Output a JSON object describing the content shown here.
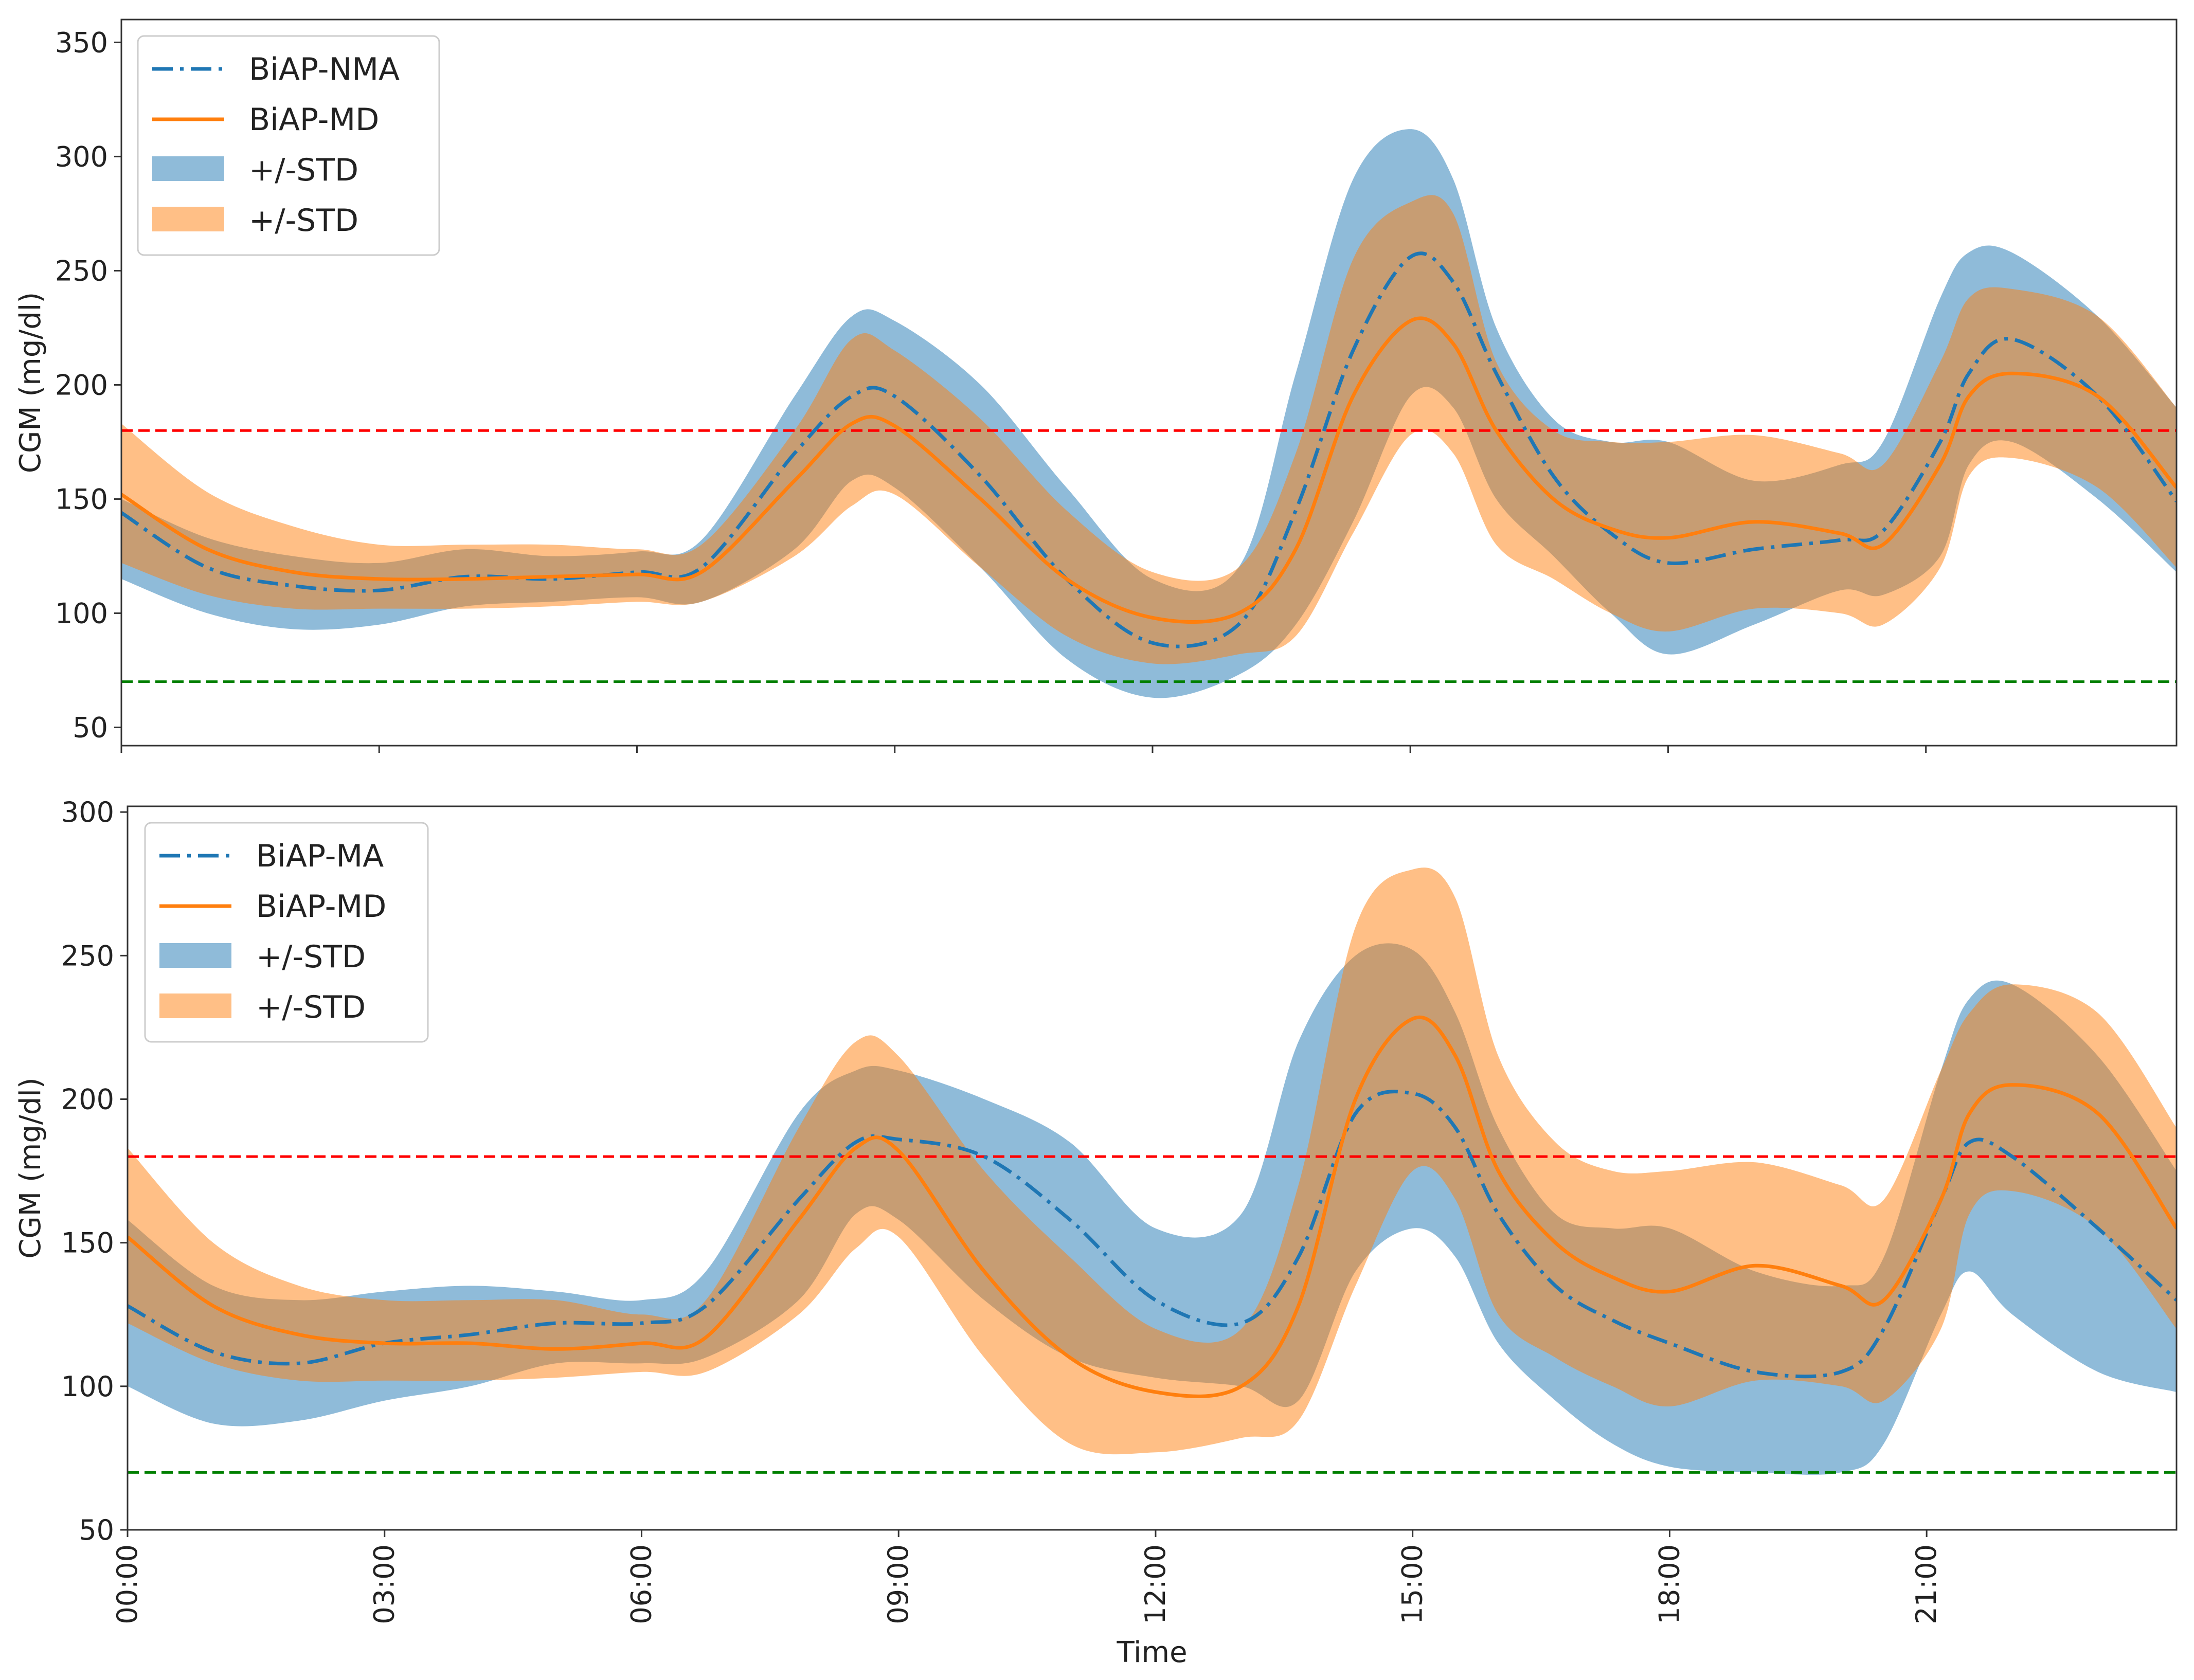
{
  "chart_data": [
    {
      "type": "line",
      "title": "",
      "xlabel": "",
      "ylabel": "CGM (mg/dl)",
      "xlim": [
        0,
        1435
      ],
      "ylim": [
        42,
        360
      ],
      "yticks": [
        50,
        100,
        150,
        200,
        250,
        300,
        350
      ],
      "xtick_values": [
        0,
        180,
        360,
        540,
        720,
        900,
        1080,
        1260
      ],
      "xtick_labels": [
        "00:00",
        "03:00",
        "06:00",
        "09:00",
        "12:00",
        "15:00",
        "18:00",
        "21:00"
      ],
      "show_x_tick_labels": false,
      "thresholds": [
        {
          "value": 180,
          "color": "#ff0000"
        },
        {
          "value": 70,
          "color": "#008000"
        }
      ],
      "legend_location": "upper-left",
      "legend": [
        {
          "label": "BiAP-NMA",
          "kind": "dashdot",
          "color": "#1f77b4"
        },
        {
          "label": "BiAP-MD",
          "kind": "line",
          "color": "#ff7f0e"
        },
        {
          "label": "+/-STD",
          "kind": "band",
          "color": "#1f77b4"
        },
        {
          "label": "+/-STD",
          "kind": "band",
          "color": "#ff7f0e"
        }
      ],
      "series": [
        {
          "name": "BiAP-NMA",
          "color": "#1f77b4",
          "style": "dashdot",
          "x": [
            0,
            60,
            120,
            180,
            240,
            300,
            360,
            405,
            470,
            510,
            540,
            600,
            660,
            720,
            780,
            820,
            860,
            900,
            930,
            960,
            1000,
            1040,
            1080,
            1140,
            1200,
            1230,
            1270,
            1290,
            1320,
            1380,
            1435
          ],
          "y": [
            144,
            120,
            112,
            110,
            116,
            115,
            118,
            120,
            170,
            195,
            195,
            160,
            115,
            87,
            95,
            145,
            215,
            256,
            245,
            205,
            160,
            135,
            122,
            128,
            132,
            136,
            175,
            205,
            220,
            195,
            149
          ],
          "upper": [
            150,
            133,
            125,
            122,
            128,
            125,
            127,
            132,
            195,
            230,
            228,
            200,
            155,
            115,
            120,
            205,
            290,
            312,
            290,
            225,
            185,
            175,
            175,
            158,
            165,
            175,
            238,
            258,
            258,
            230,
            190
          ],
          "lower": [
            115,
            100,
            93,
            95,
            103,
            105,
            107,
            105,
            128,
            158,
            155,
            120,
            80,
            63,
            73,
            95,
            140,
            195,
            190,
            150,
            125,
            100,
            82,
            95,
            110,
            108,
            125,
            165,
            175,
            150,
            118
          ]
        },
        {
          "name": "BiAP-MD",
          "color": "#ff7f0e",
          "style": "solid",
          "x": [
            0,
            60,
            120,
            180,
            240,
            300,
            360,
            405,
            470,
            510,
            540,
            600,
            660,
            720,
            780,
            820,
            860,
            900,
            930,
            960,
            1000,
            1040,
            1080,
            1140,
            1200,
            1230,
            1270,
            1290,
            1320,
            1380,
            1435
          ],
          "y": [
            152,
            128,
            118,
            115,
            115,
            116,
            117,
            118,
            158,
            183,
            182,
            150,
            115,
            98,
            100,
            128,
            195,
            228,
            218,
            180,
            150,
            137,
            133,
            140,
            135,
            130,
            165,
            195,
            205,
            195,
            155
          ],
          "upper": [
            183,
            153,
            138,
            130,
            130,
            130,
            128,
            130,
            180,
            220,
            215,
            185,
            145,
            118,
            120,
            170,
            255,
            280,
            275,
            210,
            180,
            175,
            175,
            178,
            170,
            165,
            210,
            238,
            242,
            230,
            190
          ],
          "lower": [
            122,
            108,
            102,
            102,
            102,
            103,
            105,
            105,
            125,
            147,
            152,
            120,
            90,
            78,
            82,
            90,
            135,
            178,
            170,
            130,
            115,
            100,
            92,
            102,
            100,
            95,
            120,
            160,
            168,
            155,
            120
          ]
        }
      ]
    },
    {
      "type": "line",
      "title": "",
      "xlabel": "Time",
      "ylabel": "CGM (mg/dl)",
      "xlim": [
        0,
        1435
      ],
      "ylim": [
        50,
        302
      ],
      "yticks": [
        50,
        100,
        150,
        200,
        250,
        300
      ],
      "xtick_values": [
        0,
        180,
        360,
        540,
        720,
        900,
        1080,
        1260
      ],
      "xtick_labels": [
        "00:00",
        "03:00",
        "06:00",
        "09:00",
        "12:00",
        "15:00",
        "18:00",
        "21:00"
      ],
      "show_x_tick_labels": true,
      "thresholds": [
        {
          "value": 180,
          "color": "#ff0000"
        },
        {
          "value": 70,
          "color": "#008000"
        }
      ],
      "legend_location": "upper-left",
      "legend": [
        {
          "label": "BiAP-MA",
          "kind": "dashdot",
          "color": "#1f77b4"
        },
        {
          "label": "BiAP-MD",
          "kind": "line",
          "color": "#ff7f0e"
        },
        {
          "label": "+/-STD",
          "kind": "band",
          "color": "#1f77b4"
        },
        {
          "label": "+/-STD",
          "kind": "band",
          "color": "#ff7f0e"
        }
      ],
      "series": [
        {
          "name": "BiAP-MA",
          "color": "#1f77b4",
          "style": "dashdot",
          "x": [
            0,
            60,
            120,
            180,
            240,
            300,
            360,
            405,
            470,
            510,
            540,
            600,
            660,
            720,
            780,
            820,
            860,
            900,
            930,
            960,
            1000,
            1040,
            1080,
            1140,
            1200,
            1230,
            1270,
            1290,
            1320,
            1380,
            1435
          ],
          "y": [
            128,
            112,
            108,
            115,
            118,
            122,
            122,
            128,
            165,
            185,
            186,
            180,
            158,
            130,
            122,
            145,
            195,
            202,
            190,
            160,
            135,
            123,
            115,
            105,
            105,
            120,
            165,
            185,
            180,
            155,
            130
          ],
          "upper": [
            158,
            135,
            130,
            133,
            135,
            133,
            130,
            140,
            195,
            210,
            210,
            200,
            185,
            155,
            160,
            220,
            250,
            252,
            230,
            190,
            160,
            155,
            155,
            140,
            135,
            145,
            210,
            235,
            240,
            215,
            175
          ],
          "lower": [
            100,
            87,
            88,
            95,
            100,
            108,
            108,
            110,
            130,
            160,
            158,
            130,
            110,
            103,
            100,
            95,
            140,
            155,
            145,
            115,
            95,
            80,
            72,
            70,
            70,
            80,
            125,
            140,
            125,
            105,
            98
          ]
        },
        {
          "name": "BiAP-MD",
          "color": "#ff7f0e",
          "style": "solid",
          "x": [
            0,
            60,
            120,
            180,
            240,
            300,
            360,
            405,
            470,
            510,
            540,
            600,
            660,
            720,
            780,
            820,
            860,
            900,
            930,
            960,
            1000,
            1040,
            1080,
            1140,
            1200,
            1230,
            1270,
            1290,
            1320,
            1380,
            1435
          ],
          "y": [
            152,
            128,
            118,
            115,
            115,
            113,
            115,
            117,
            158,
            183,
            182,
            140,
            110,
            98,
            100,
            128,
            200,
            228,
            215,
            175,
            150,
            138,
            133,
            142,
            135,
            130,
            165,
            195,
            205,
            195,
            155
          ],
          "upper": [
            183,
            150,
            135,
            130,
            130,
            130,
            125,
            130,
            190,
            220,
            215,
            175,
            145,
            120,
            120,
            170,
            260,
            280,
            270,
            215,
            185,
            175,
            175,
            178,
            170,
            165,
            210,
            230,
            240,
            230,
            190
          ],
          "lower": [
            122,
            108,
            102,
            102,
            102,
            103,
            105,
            105,
            125,
            148,
            152,
            110,
            80,
            77,
            82,
            88,
            135,
            175,
            165,
            125,
            110,
            100,
            93,
            102,
            100,
            95,
            120,
            160,
            168,
            155,
            120
          ]
        }
      ]
    }
  ]
}
